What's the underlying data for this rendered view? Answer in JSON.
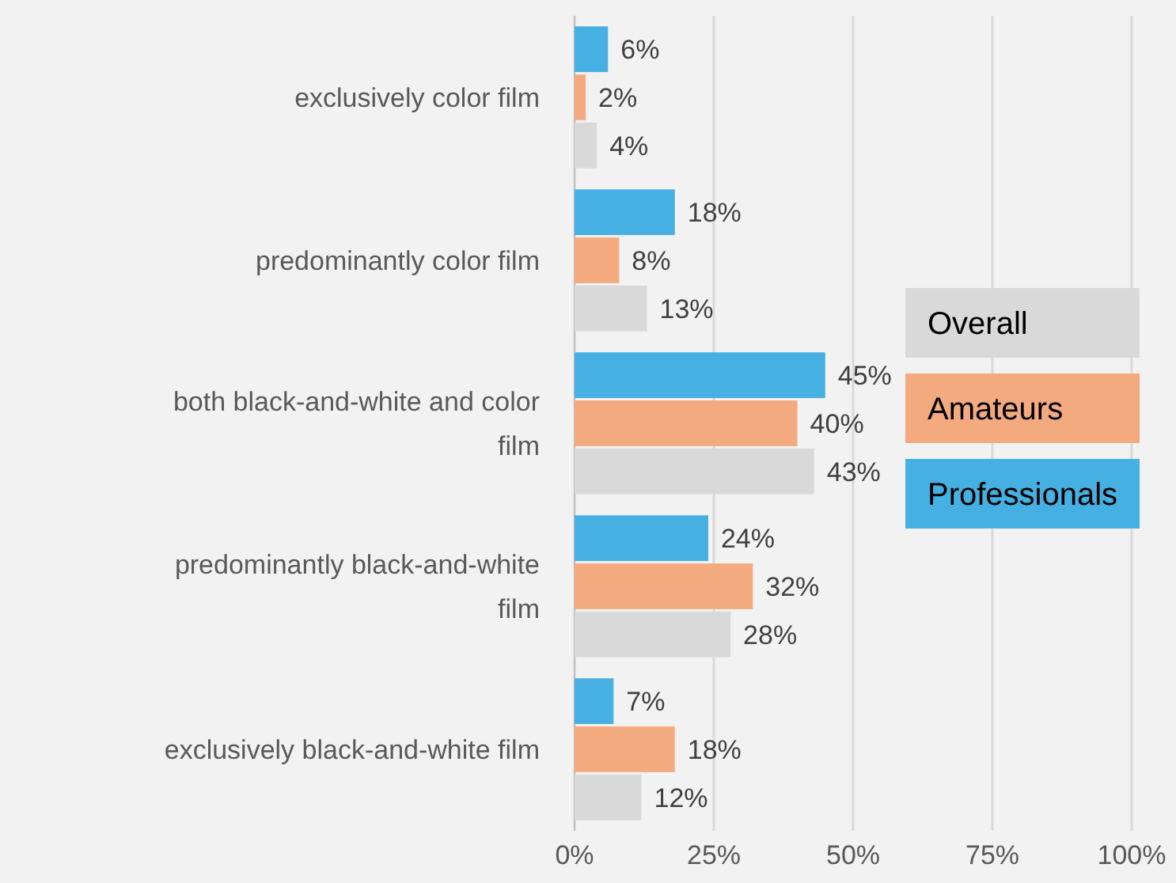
{
  "chart_data": {
    "type": "bar",
    "orientation": "horizontal",
    "categories": [
      "exclusively color film",
      "predominantly color film",
      "both black-and-white and color film",
      "predominantly black-and-white film",
      "exclusively black-and-white film"
    ],
    "series": [
      {
        "name": "Professionals",
        "color": "#45b0e1",
        "values": [
          6,
          18,
          45,
          24,
          7
        ],
        "value_labels": [
          "6%",
          "18%",
          "45%",
          "24%",
          "7%"
        ]
      },
      {
        "name": "Amateurs",
        "color": "#f4aa7f",
        "values": [
          2,
          8,
          40,
          32,
          18
        ],
        "value_labels": [
          "2%",
          "8%",
          "40%",
          "32%",
          "18%"
        ]
      },
      {
        "name": "Overall",
        "color": "#d9d9d9",
        "values": [
          4,
          13,
          43,
          28,
          12
        ],
        "value_labels": [
          "4%",
          "13%",
          "43%",
          "28%",
          "12%"
        ]
      }
    ],
    "xlim": [
      0,
      100
    ],
    "xticks": [
      {
        "value": 0,
        "label": "0%"
      },
      {
        "value": 25,
        "label": "25%"
      },
      {
        "value": 50,
        "label": "50%"
      },
      {
        "value": 75,
        "label": "75%"
      },
      {
        "value": 100,
        "label": "100%"
      }
    ],
    "grid": "x",
    "legend": "right"
  }
}
